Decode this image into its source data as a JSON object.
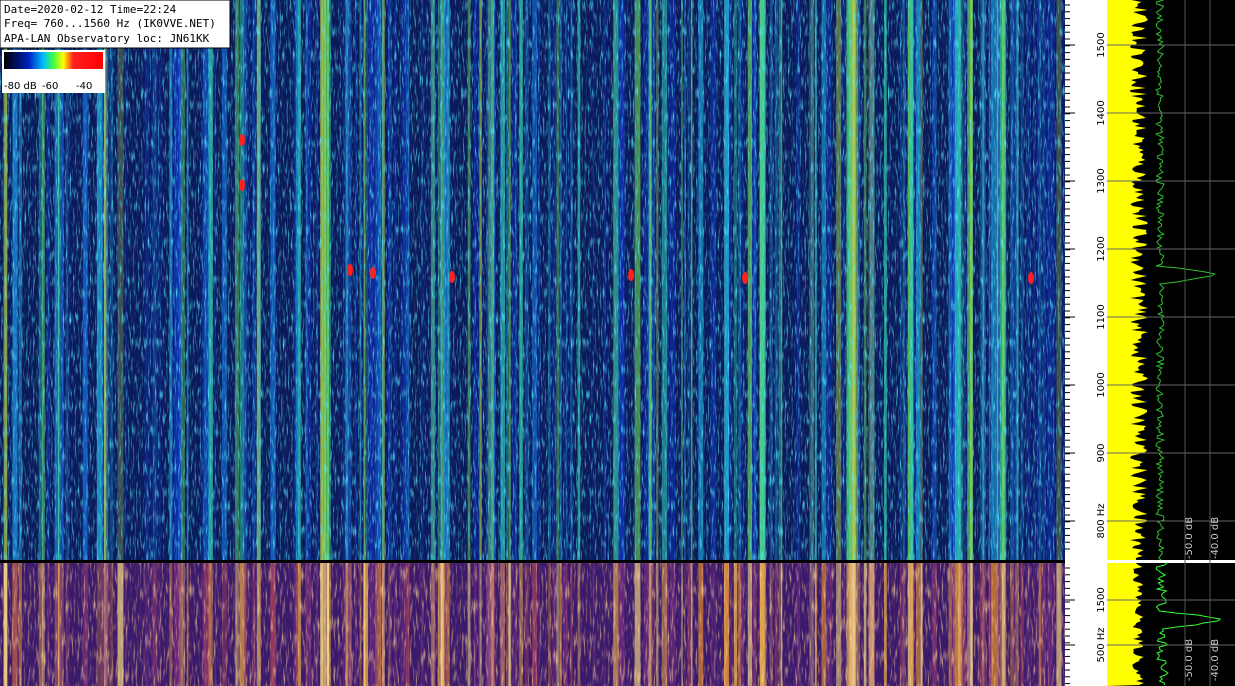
{
  "header": {
    "lines": [
      "Date=2020-02-12 Time=22:24",
      "Freq= 760...1560 Hz (IK0VVE.NET)",
      "APA-LAN Observatory loc: JN61KK"
    ]
  },
  "color_scale": {
    "labels": [
      "-80 dB",
      "-60",
      "-40"
    ]
  },
  "upper_axis": {
    "ticks": [
      1500,
      1400,
      1300,
      1200,
      1100,
      1000,
      900,
      {
        "value": 800,
        "label": "800 Hz"
      }
    ]
  },
  "upper_db_labels": [
    "-50.0 dB",
    "-40.0 dB"
  ],
  "lower_axis": {
    "ticks": [
      1500,
      {
        "value": 500,
        "label": "500 Hz"
      }
    ]
  },
  "lower_db_labels": [
    "-50.0 dB",
    "-40.0 dB"
  ]
}
